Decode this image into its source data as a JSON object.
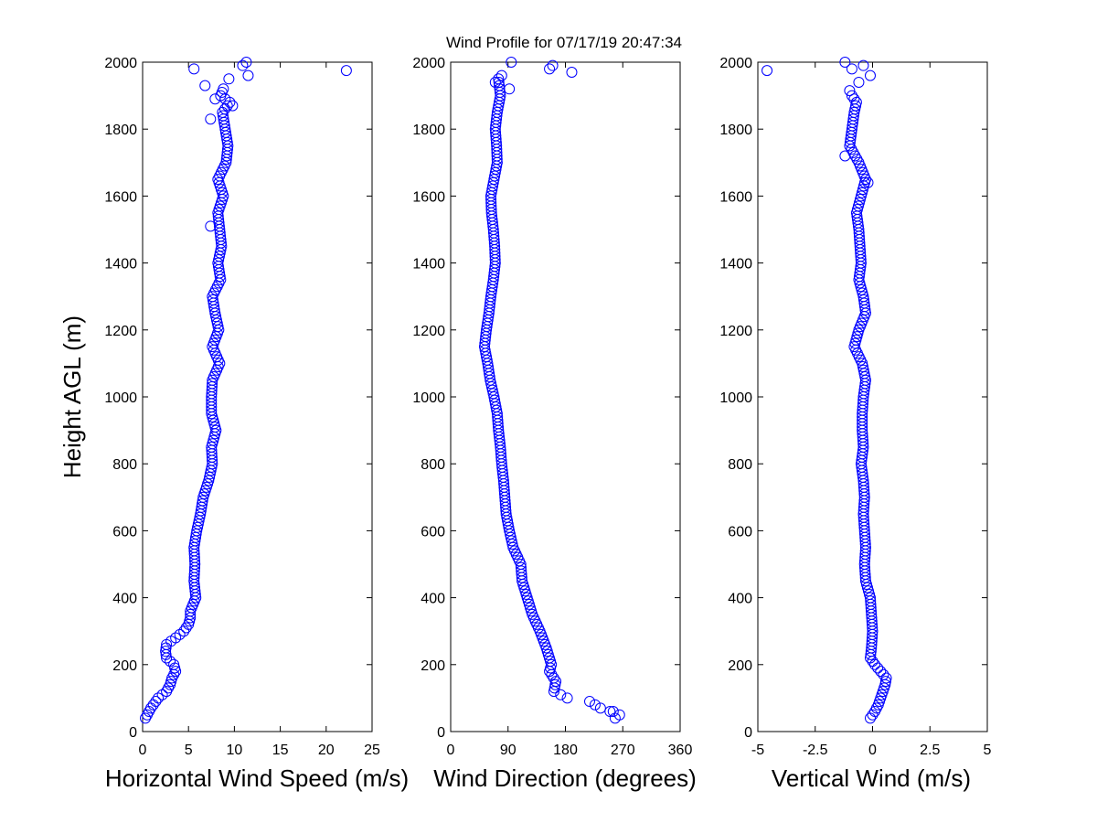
{
  "chart_data": [
    {
      "type": "scatter",
      "title": "Wind Profile for  07/17/19 20:47:34",
      "xlabel": "Horizontal Wind Speed (m/s)",
      "ylabel": "Height AGL (m)",
      "xlim": [
        0,
        25
      ],
      "ylim": [
        0,
        2000
      ],
      "xticks": [
        "0",
        "5",
        "10",
        "15",
        "20",
        "25"
      ],
      "yticks": [
        "0",
        "200",
        "400",
        "600",
        "800",
        "1000",
        "1200",
        "1400",
        "1600",
        "1800",
        "2000"
      ],
      "color": "#0000ff",
      "knots": [
        [
          40,
          0.3
        ],
        [
          55,
          0.6
        ],
        [
          70,
          0.9
        ],
        [
          85,
          1.3
        ],
        [
          100,
          1.7
        ],
        [
          120,
          2.6
        ],
        [
          140,
          3.0
        ],
        [
          160,
          3.2
        ],
        [
          180,
          3.6
        ],
        [
          200,
          3.4
        ],
        [
          220,
          2.6
        ],
        [
          240,
          2.5
        ],
        [
          260,
          2.6
        ],
        [
          280,
          3.6
        ],
        [
          300,
          4.5
        ],
        [
          320,
          5.0
        ],
        [
          340,
          5.2
        ],
        [
          360,
          5.2
        ],
        [
          380,
          5.5
        ],
        [
          400,
          5.8
        ],
        [
          450,
          5.6
        ],
        [
          500,
          5.7
        ],
        [
          550,
          5.6
        ],
        [
          600,
          5.9
        ],
        [
          650,
          6.3
        ],
        [
          700,
          6.6
        ],
        [
          750,
          7.2
        ],
        [
          800,
          7.6
        ],
        [
          850,
          7.5
        ],
        [
          900,
          8.0
        ],
        [
          950,
          7.5
        ],
        [
          1000,
          7.5
        ],
        [
          1050,
          7.6
        ],
        [
          1100,
          8.4
        ],
        [
          1150,
          7.6
        ],
        [
          1200,
          8.3
        ],
        [
          1250,
          7.9
        ],
        [
          1300,
          7.6
        ],
        [
          1350,
          8.5
        ],
        [
          1400,
          8.2
        ],
        [
          1450,
          8.6
        ],
        [
          1500,
          8.4
        ],
        [
          1550,
          8.2
        ],
        [
          1600,
          8.8
        ],
        [
          1650,
          8.2
        ],
        [
          1700,
          9.1
        ],
        [
          1750,
          9.3
        ],
        [
          1800,
          9.0
        ],
        [
          1850,
          8.7
        ],
        [
          1880,
          9.5
        ],
        [
          1900,
          8.5
        ],
        [
          1920,
          8.8
        ]
      ],
      "outliers": [
        [
          1510,
          7.4
        ],
        [
          1830,
          7.4
        ],
        [
          1870,
          9.8
        ],
        [
          1890,
          7.9
        ],
        [
          1930,
          6.8
        ],
        [
          1950,
          9.4
        ],
        [
          1960,
          11.5
        ],
        [
          1975,
          22.2
        ],
        [
          1980,
          5.6
        ],
        [
          1990,
          10.9
        ],
        [
          2000,
          11.3
        ]
      ]
    },
    {
      "type": "scatter",
      "xlabel": "Wind Direction (degrees)",
      "xlim": [
        0,
        360
      ],
      "ylim": [
        0,
        2000
      ],
      "xticks": [
        "0",
        "90",
        "180",
        "270",
        "360"
      ],
      "yticks": [
        "0",
        "200",
        "400",
        "600",
        "800",
        "1000",
        "1200",
        "1400",
        "1600",
        "1800",
        "2000"
      ],
      "color": "#0000ff",
      "knots": [
        [
          50,
          265
        ],
        [
          70,
          235
        ],
        [
          90,
          218
        ],
        [
          100,
          183
        ],
        [
          120,
          162
        ],
        [
          150,
          165
        ],
        [
          180,
          155
        ],
        [
          200,
          158
        ],
        [
          250,
          150
        ],
        [
          300,
          140
        ],
        [
          350,
          128
        ],
        [
          400,
          120
        ],
        [
          450,
          112
        ],
        [
          500,
          110
        ],
        [
          550,
          98
        ],
        [
          600,
          92
        ],
        [
          650,
          87
        ],
        [
          700,
          85
        ],
        [
          750,
          83
        ],
        [
          800,
          80
        ],
        [
          850,
          78
        ],
        [
          900,
          75
        ],
        [
          950,
          73
        ],
        [
          1000,
          68
        ],
        [
          1050,
          62
        ],
        [
          1100,
          58
        ],
        [
          1150,
          53
        ],
        [
          1200,
          56
        ],
        [
          1250,
          60
        ],
        [
          1300,
          63
        ],
        [
          1350,
          67
        ],
        [
          1400,
          70
        ],
        [
          1450,
          69
        ],
        [
          1500,
          67
        ],
        [
          1550,
          64
        ],
        [
          1600,
          63
        ],
        [
          1650,
          68
        ],
        [
          1700,
          73
        ],
        [
          1750,
          72
        ],
        [
          1800,
          70
        ],
        [
          1850,
          73
        ],
        [
          1900,
          78
        ],
        [
          1950,
          75
        ]
      ],
      "outliers": [
        [
          40,
          258
        ],
        [
          60,
          255
        ],
        [
          1920,
          92
        ],
        [
          1940,
          70
        ],
        [
          1960,
          80
        ],
        [
          1970,
          190
        ],
        [
          1980,
          155
        ],
        [
          1990,
          160
        ],
        [
          2000,
          95
        ]
      ]
    },
    {
      "type": "scatter",
      "xlabel": "Vertical Wind (m/s)",
      "xlim": [
        -5,
        5
      ],
      "ylim": [
        0,
        2000
      ],
      "xticks": [
        "-5",
        "-2.5",
        "0",
        "2.5",
        "5"
      ],
      "yticks": [
        "0",
        "200",
        "400",
        "600",
        "800",
        "1000",
        "1200",
        "1400",
        "1600",
        "1800",
        "2000"
      ],
      "color": "#0000ff",
      "knots": [
        [
          40,
          -0.1
        ],
        [
          60,
          0.1
        ],
        [
          80,
          0.25
        ],
        [
          100,
          0.35
        ],
        [
          120,
          0.45
        ],
        [
          140,
          0.55
        ],
        [
          160,
          0.6
        ],
        [
          180,
          0.35
        ],
        [
          200,
          0.1
        ],
        [
          220,
          -0.1
        ],
        [
          250,
          -0.05
        ],
        [
          300,
          0.0
        ],
        [
          350,
          -0.05
        ],
        [
          400,
          -0.1
        ],
        [
          450,
          -0.3
        ],
        [
          500,
          -0.35
        ],
        [
          550,
          -0.3
        ],
        [
          600,
          -0.35
        ],
        [
          650,
          -0.4
        ],
        [
          700,
          -0.35
        ],
        [
          750,
          -0.4
        ],
        [
          800,
          -0.5
        ],
        [
          850,
          -0.4
        ],
        [
          900,
          -0.45
        ],
        [
          950,
          -0.45
        ],
        [
          1000,
          -0.4
        ],
        [
          1050,
          -0.3
        ],
        [
          1100,
          -0.45
        ],
        [
          1150,
          -0.8
        ],
        [
          1200,
          -0.6
        ],
        [
          1250,
          -0.3
        ],
        [
          1300,
          -0.4
        ],
        [
          1350,
          -0.6
        ],
        [
          1400,
          -0.5
        ],
        [
          1450,
          -0.55
        ],
        [
          1500,
          -0.6
        ],
        [
          1550,
          -0.7
        ],
        [
          1600,
          -0.5
        ],
        [
          1650,
          -0.3
        ],
        [
          1700,
          -0.6
        ],
        [
          1750,
          -1.0
        ],
        [
          1800,
          -0.9
        ],
        [
          1850,
          -0.8
        ],
        [
          1880,
          -0.7
        ],
        [
          1900,
          -0.9
        ]
      ],
      "outliers": [
        [
          1640,
          -0.2
        ],
        [
          1720,
          -1.2
        ],
        [
          1915,
          -1.0
        ],
        [
          1940,
          -0.6
        ],
        [
          1960,
          -0.1
        ],
        [
          1975,
          -4.6
        ],
        [
          1980,
          -0.9
        ],
        [
          1990,
          -0.4
        ],
        [
          2000,
          -1.2
        ]
      ]
    }
  ]
}
